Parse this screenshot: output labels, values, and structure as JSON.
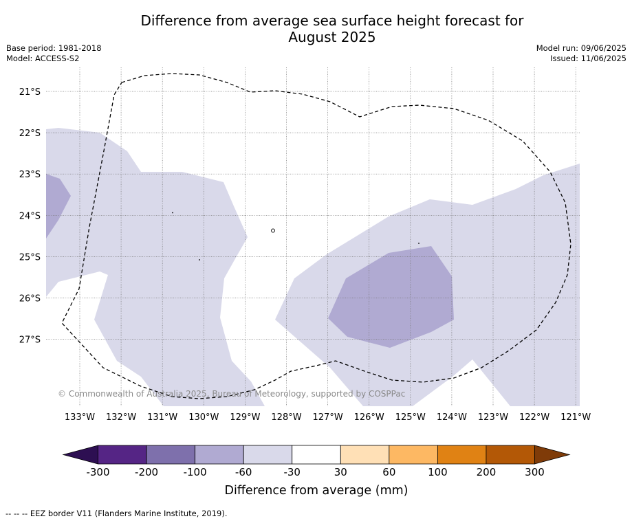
{
  "title_line1": "Difference from average sea surface height forecast for",
  "title_line2": "August 2025",
  "base_period": "Base period: 1981-2018",
  "model": "Model: ACCESS-S2",
  "model_run": "Model run: 09/06/2025",
  "issued": "Issued: 11/06/2025",
  "copyright": "© Commonwealth of Australia 2025, Bureau of Meteorology, supported by COSPPac",
  "footnote": "--  --  -- EEZ border V11 (Flanders Marine Institute, 2019).",
  "map": {
    "lat_ticks": [
      "21°S",
      "22°S",
      "23°S",
      "24°S",
      "25°S",
      "26°S",
      "27°S"
    ],
    "lon_ticks": [
      "133°W",
      "132°W",
      "131°W",
      "130°W",
      "129°W",
      "128°W",
      "127°W",
      "126°W",
      "125°W",
      "124°W",
      "123°W",
      "122°W",
      "121°W"
    ]
  },
  "legend": {
    "title": "Difference from average (mm)",
    "tick_labels": [
      "-300",
      "-200",
      "-100",
      "-60",
      "-30",
      "30",
      "60",
      "100",
      "200",
      "300"
    ],
    "colors": {
      "below_min": "#2d0f52",
      "bins": [
        "#552585",
        "#7e70ac",
        "#b0aad2",
        "#d9d9ea",
        "#ffffff",
        "#ffe0b6",
        "#fdb863",
        "#e08214",
        "#b35806"
      ],
      "above_max": "#7f3b08"
    }
  },
  "colors": {
    "band_neg_30_60": "#d9d9ea",
    "band_neg_60_100": "#b0aad2",
    "eez_line": "#000000",
    "grid": "#777777"
  }
}
